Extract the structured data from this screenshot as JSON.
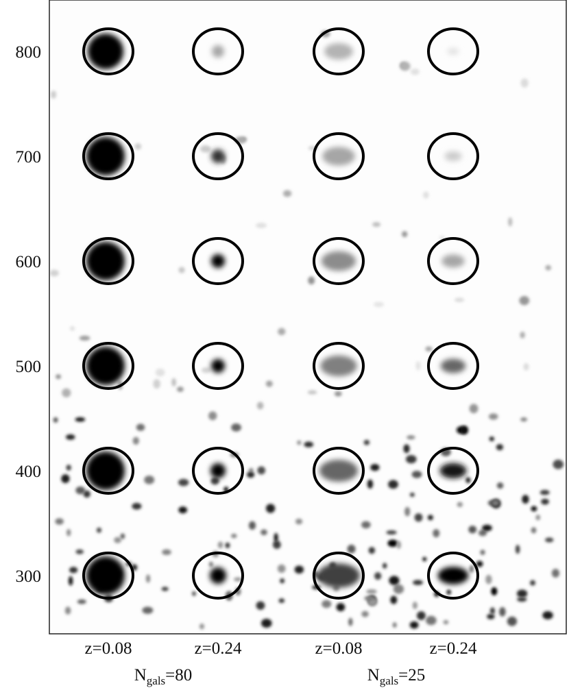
{
  "figure": {
    "row_labels": [
      "800",
      "700",
      "600",
      "500",
      "400",
      "300"
    ],
    "column_labels": [
      "z=0.08",
      "z=0.24",
      "z=0.08",
      "z=0.24"
    ],
    "group_labels": [
      {
        "main": "N",
        "sub": "gals",
        "rest": "=80"
      },
      {
        "main": "N",
        "sub": "gals",
        "rest": "=25"
      }
    ]
  }
}
